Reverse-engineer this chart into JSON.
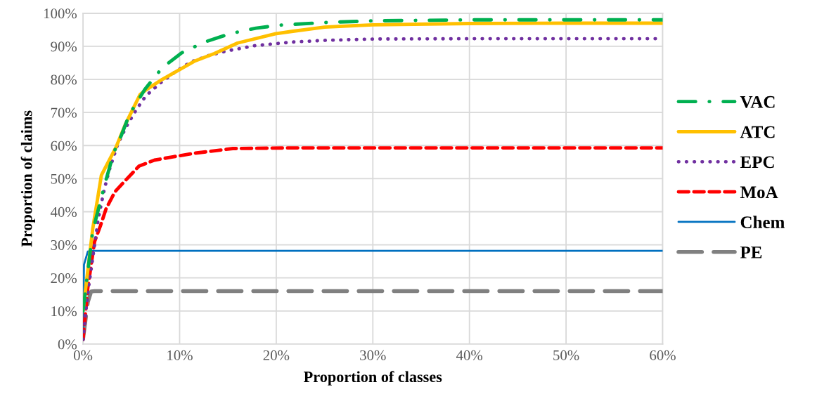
{
  "chart_data": {
    "type": "line",
    "xlabel": "Proportion of classes",
    "ylabel": "Proportion of claims",
    "xlim": [
      0,
      60
    ],
    "ylim": [
      0,
      100
    ],
    "xticks": [
      {
        "value": 0,
        "label": "0%"
      },
      {
        "value": 10,
        "label": "10%"
      },
      {
        "value": 20,
        "label": "20%"
      },
      {
        "value": 30,
        "label": "30%"
      },
      {
        "value": 40,
        "label": "40%"
      },
      {
        "value": 50,
        "label": "50%"
      },
      {
        "value": 60,
        "label": "60%"
      }
    ],
    "yticks": [
      {
        "value": 0,
        "label": "0%"
      },
      {
        "value": 10,
        "label": "10%"
      },
      {
        "value": 20,
        "label": "20%"
      },
      {
        "value": 30,
        "label": "30%"
      },
      {
        "value": 40,
        "label": "40%"
      },
      {
        "value": 50,
        "label": "50%"
      },
      {
        "value": 60,
        "label": "60%"
      },
      {
        "value": 70,
        "label": "70%"
      },
      {
        "value": 80,
        "label": "80%"
      },
      {
        "value": 90,
        "label": "90%"
      },
      {
        "value": 100,
        "label": "100%"
      }
    ],
    "grid": true,
    "legend": "right",
    "marker": "none",
    "series": [
      {
        "name": "VAC",
        "color": "#00b050",
        "line_style": "dashdot",
        "x": [
          0,
          1,
          2.3,
          3.2,
          4,
          4.8,
          6.4,
          8.2,
          10.2,
          12.6,
          15.2,
          17.9,
          20.4,
          25,
          30,
          40,
          50,
          60
        ],
        "values": [
          10,
          34,
          48.8,
          58,
          63.3,
          69.4,
          77,
          83.5,
          88,
          91.3,
          93.8,
          95.5,
          96.4,
          97.2,
          97.7,
          98,
          98,
          98
        ]
      },
      {
        "name": "ATC",
        "color": "#ffc000",
        "line_style": "solid",
        "x": [
          0,
          1,
          1.9,
          2.4,
          3.4,
          4.4,
          5.9,
          6.5,
          8.2,
          9.9,
          11.6,
          13.6,
          16,
          19.9,
          21.6,
          25,
          30,
          40,
          50,
          60
        ],
        "values": [
          10,
          34.7,
          51,
          53.8,
          59.4,
          66.5,
          75.4,
          76.8,
          80,
          82.8,
          85.6,
          87.8,
          91,
          93.8,
          94.5,
          95.8,
          96.5,
          96.9,
          97,
          97
        ]
      },
      {
        "name": "EPC",
        "color": "#7030a0",
        "line_style": "dotted",
        "x": [
          0,
          0.5,
          1.6,
          2.2,
          2.7,
          3.6,
          4.5,
          5.5,
          6.5,
          8,
          9.6,
          11.2,
          13,
          14.9,
          17.8,
          21.7,
          25,
          30,
          40,
          50,
          60
        ],
        "values": [
          1.4,
          15.6,
          38.2,
          46.7,
          52.4,
          60.5,
          65.8,
          70.8,
          75,
          78.9,
          82.4,
          85.3,
          87.2,
          88.6,
          90.2,
          91.3,
          91.8,
          92.2,
          92.3,
          92.3,
          92.3
        ]
      },
      {
        "name": "MoA",
        "color": "#ff0000",
        "line_style": "dashed",
        "x": [
          0,
          0.5,
          1.2,
          1.8,
          2.4,
          3.3,
          4.4,
          5.8,
          7.4,
          9.3,
          11.6,
          15.5,
          21.6,
          30,
          40,
          50,
          60
        ],
        "values": [
          1.4,
          17,
          31,
          35.7,
          41,
          46,
          49.5,
          53.8,
          55.6,
          56.6,
          57.7,
          59.1,
          59.3,
          59.3,
          59.3,
          59.3,
          59.3
        ]
      },
      {
        "name": "Chem",
        "color": "#0070c0",
        "line_style": "solid",
        "x": [
          0,
          0.1,
          0.5,
          1,
          60
        ],
        "values": [
          1.4,
          24,
          28,
          28.2,
          28.2
        ]
      },
      {
        "name": "PE",
        "color": "#808080",
        "line_style": "long dashed",
        "x": [
          0,
          0.5,
          0.85,
          1.2,
          60
        ],
        "values": [
          1.4,
          12.7,
          15.9,
          16,
          16
        ]
      }
    ]
  }
}
